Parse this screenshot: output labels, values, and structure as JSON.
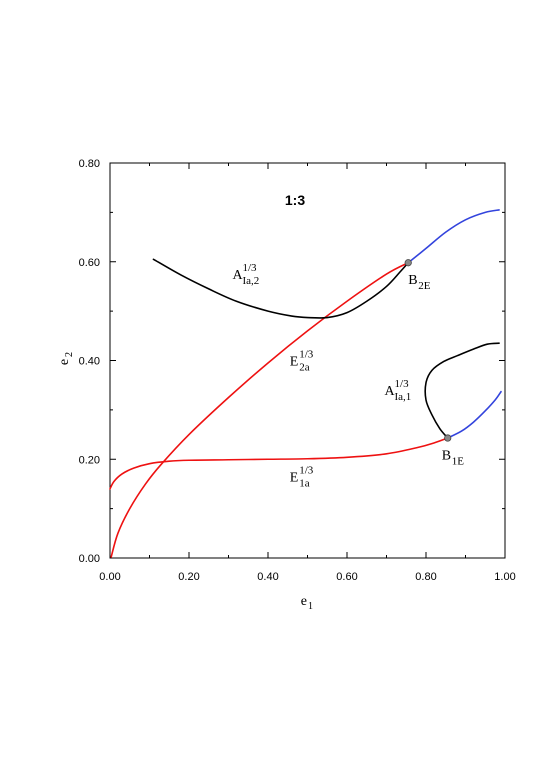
{
  "chart_data": {
    "type": "line",
    "title": "1:3",
    "xlabel": {
      "base": "e",
      "sub": "1"
    },
    "ylabel": {
      "base": "e",
      "sub": "2"
    },
    "xlim": [
      0,
      1
    ],
    "ylim": [
      0,
      0.8
    ],
    "xticks": [
      0,
      0.2,
      0.4,
      0.6,
      0.8,
      1.0
    ],
    "xtick_labels": [
      "0.00",
      "0.20",
      "0.40",
      "0.60",
      "0.80",
      "1.00"
    ],
    "yticks": [
      0,
      0.2,
      0.4,
      0.6,
      0.8
    ],
    "ytick_labels": [
      "0.00",
      "0.20",
      "0.40",
      "0.60",
      "0.80"
    ],
    "grid": false,
    "colors": {
      "red": "#ee1111",
      "black": "#000000",
      "blue": "#3344dd",
      "point": "#888888"
    },
    "series": [
      {
        "color": "red",
        "points": [
          [
            0.0,
            0.14
          ],
          [
            0.01,
            0.155
          ],
          [
            0.03,
            0.17
          ],
          [
            0.06,
            0.182
          ],
          [
            0.1,
            0.191
          ],
          [
            0.15,
            0.196
          ],
          [
            0.2,
            0.198
          ],
          [
            0.3,
            0.199
          ],
          [
            0.4,
            0.2
          ],
          [
            0.5,
            0.201
          ],
          [
            0.6,
            0.204
          ],
          [
            0.7,
            0.211
          ],
          [
            0.78,
            0.224
          ],
          [
            0.82,
            0.233
          ],
          [
            0.855,
            0.243
          ]
        ]
      },
      {
        "color": "red",
        "points": [
          [
            0.003,
            0.002
          ],
          [
            0.02,
            0.05
          ],
          [
            0.05,
            0.1
          ],
          [
            0.09,
            0.15
          ],
          [
            0.13,
            0.19
          ],
          [
            0.2,
            0.25
          ],
          [
            0.3,
            0.325
          ],
          [
            0.4,
            0.395
          ],
          [
            0.5,
            0.46
          ],
          [
            0.6,
            0.52
          ],
          [
            0.7,
            0.575
          ],
          [
            0.755,
            0.598
          ]
        ]
      },
      {
        "color": "black",
        "points": [
          [
            0.11,
            0.605
          ],
          [
            0.18,
            0.573
          ],
          [
            0.25,
            0.545
          ],
          [
            0.32,
            0.52
          ],
          [
            0.4,
            0.5
          ],
          [
            0.46,
            0.49
          ],
          [
            0.5,
            0.487
          ],
          [
            0.55,
            0.487
          ],
          [
            0.6,
            0.497
          ],
          [
            0.65,
            0.52
          ],
          [
            0.7,
            0.55
          ],
          [
            0.735,
            0.58
          ],
          [
            0.755,
            0.598
          ]
        ]
      },
      {
        "color": "black",
        "points": [
          [
            0.855,
            0.243
          ],
          [
            0.835,
            0.262
          ],
          [
            0.815,
            0.29
          ],
          [
            0.8,
            0.32
          ],
          [
            0.8,
            0.355
          ],
          [
            0.815,
            0.38
          ],
          [
            0.845,
            0.398
          ],
          [
            0.88,
            0.41
          ],
          [
            0.92,
            0.423
          ],
          [
            0.955,
            0.433
          ],
          [
            0.985,
            0.435
          ]
        ]
      },
      {
        "color": "blue",
        "points": [
          [
            0.755,
            0.598
          ],
          [
            0.8,
            0.627
          ],
          [
            0.85,
            0.66
          ],
          [
            0.9,
            0.685
          ],
          [
            0.95,
            0.7
          ],
          [
            0.985,
            0.705
          ]
        ]
      },
      {
        "color": "blue",
        "points": [
          [
            0.855,
            0.243
          ],
          [
            0.89,
            0.257
          ],
          [
            0.92,
            0.275
          ],
          [
            0.95,
            0.298
          ],
          [
            0.975,
            0.32
          ],
          [
            0.99,
            0.337
          ]
        ]
      }
    ],
    "markers": [
      {
        "x": 0.755,
        "y": 0.598
      },
      {
        "x": 0.855,
        "y": 0.243
      }
    ],
    "annotations": [
      {
        "id": "A2",
        "base": "A",
        "sup": "1/3",
        "sub": "Ia,2",
        "x": 0.31,
        "y": 0.565
      },
      {
        "id": "E2",
        "base": "E",
        "sup": "1/3",
        "sub": "2a",
        "x": 0.455,
        "y": 0.39
      },
      {
        "id": "A1",
        "base": "A",
        "sup": "1/3",
        "sub": "Ia,1",
        "x": 0.695,
        "y": 0.33
      },
      {
        "id": "E1",
        "base": "E",
        "sup": "1/3",
        "sub": "1a",
        "x": 0.455,
        "y": 0.155
      },
      {
        "id": "B2E",
        "base": "B",
        "sup": "",
        "sub": "2E",
        "x": 0.755,
        "y": 0.555
      },
      {
        "id": "B1E",
        "base": "B",
        "sup": "",
        "sub": "1E",
        "x": 0.84,
        "y": 0.2
      }
    ]
  }
}
